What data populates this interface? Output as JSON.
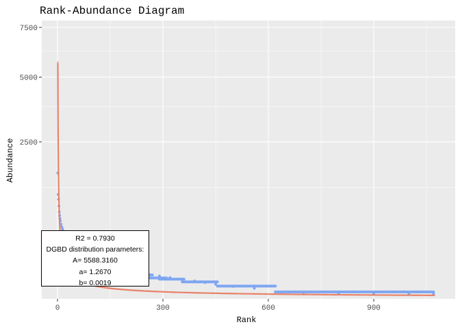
{
  "chart_data": {
    "type": "scatter",
    "title": "Rank-Abundance Diagram",
    "xlabel": "Rank",
    "ylabel": "Abundance",
    "x_ticks": [
      0,
      300,
      600,
      900
    ],
    "y_ticks": [
      2500,
      5000,
      7500
    ],
    "xlim": [
      -30,
      1100
    ],
    "y_scale": "sqrt",
    "ylim": [
      0,
      8200
    ],
    "grid": true,
    "series": [
      {
        "kind": "points",
        "color": "#7FA6F2",
        "points": [
          [
            1,
            1600
          ],
          [
            2,
            1100
          ],
          [
            3,
            1000
          ],
          [
            4,
            870
          ],
          [
            5,
            760
          ],
          [
            6,
            700
          ],
          [
            7,
            650
          ],
          [
            8,
            610
          ],
          [
            10,
            560
          ],
          [
            12,
            520
          ],
          [
            14,
            490
          ],
          [
            16,
            465
          ],
          [
            18,
            440
          ],
          [
            20,
            415
          ],
          [
            22,
            395
          ],
          [
            25,
            370
          ],
          [
            28,
            350
          ],
          [
            31,
            330
          ],
          [
            35,
            310
          ],
          [
            40,
            290
          ],
          [
            45,
            270
          ],
          [
            50,
            252
          ],
          [
            55,
            238
          ],
          [
            60,
            225
          ],
          [
            70,
            205
          ],
          [
            80,
            188
          ],
          [
            90,
            172
          ],
          [
            100,
            158
          ],
          [
            110,
            146
          ],
          [
            120,
            135
          ],
          [
            130,
            125
          ],
          [
            140,
            116
          ],
          [
            150,
            108
          ],
          [
            160,
            100
          ],
          [
            170,
            93
          ],
          [
            180,
            86
          ],
          [
            195,
            79
          ],
          [
            210,
            72
          ],
          [
            230,
            65
          ],
          [
            260,
            58
          ],
          [
            290,
            50
          ],
          [
            320,
            43
          ],
          [
            355,
            37
          ],
          [
            390,
            30
          ],
          [
            420,
            25
          ],
          [
            450,
            20
          ],
          [
            500,
            14
          ],
          [
            560,
            10
          ],
          [
            620,
            4
          ],
          [
            700,
            3
          ],
          [
            800,
            2
          ],
          [
            900,
            2
          ],
          [
            1000,
            2
          ],
          [
            1070,
            2
          ]
        ],
        "steps": [
          {
            "x_start": 120,
            "x_end": 140,
            "y": 118
          },
          {
            "x_start": 140,
            "x_end": 165,
            "y": 98
          },
          {
            "x_start": 160,
            "x_end": 190,
            "y": 86
          },
          {
            "x_start": 180,
            "x_end": 215,
            "y": 76
          },
          {
            "x_start": 205,
            "x_end": 240,
            "y": 65
          },
          {
            "x_start": 230,
            "x_end": 270,
            "y": 55
          },
          {
            "x_start": 255,
            "x_end": 310,
            "y": 42
          },
          {
            "x_start": 290,
            "x_end": 360,
            "y": 37
          },
          {
            "x_start": 355,
            "x_end": 455,
            "y": 27
          },
          {
            "x_start": 455,
            "x_end": 620,
            "y": 15
          },
          {
            "x_start": 620,
            "x_end": 1070,
            "y": 4
          }
        ]
      },
      {
        "kind": "fit-lines",
        "color": "#E8836A",
        "model": "DGBD",
        "A": 5588.316,
        "a": 1.267,
        "b": 0.0019,
        "x_range": [
          1,
          1075
        ]
      }
    ],
    "annotation": {
      "r2": "R2 =  0.7930",
      "heading": "DGBD distribution parameters:",
      "A": "A= 5588.3160",
      "a": "a= 1.2670",
      "b": "b= 0.0019"
    },
    "colors": {
      "panel": "#EBEBEB",
      "grid": "#FFFFFF",
      "points": "#7FA6F2",
      "fit": "#E8836A"
    }
  }
}
